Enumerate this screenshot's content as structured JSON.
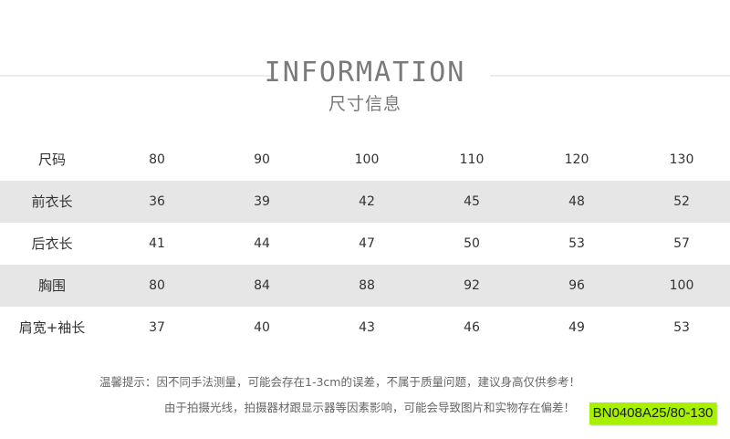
{
  "header": {
    "title_en": "INFORMATION",
    "title_cn": "尺寸信息"
  },
  "table": {
    "rows": [
      {
        "label": "尺码",
        "values": [
          "80",
          "90",
          "100",
          "110",
          "120",
          "130"
        ],
        "shaded": false
      },
      {
        "label": "前衣长",
        "values": [
          "36",
          "39",
          "42",
          "45",
          "48",
          "52"
        ],
        "shaded": true
      },
      {
        "label": "后衣长",
        "values": [
          "41",
          "44",
          "47",
          "50",
          "53",
          "57"
        ],
        "shaded": false
      },
      {
        "label": "胸围",
        "values": [
          "80",
          "84",
          "88",
          "92",
          "96",
          "100"
        ],
        "shaded": true
      },
      {
        "label": "肩宽+袖长",
        "values": [
          "37",
          "40",
          "43",
          "46",
          "49",
          "53"
        ],
        "shaded": false
      }
    ]
  },
  "notes": {
    "line1": "温馨提示：因不同手法测量，可能会存在1-3cm的误差，不属于质量问题，建议身高仅供参考！",
    "line2": "由于拍摄光线，拍摄器材跟显示器等因素影响，可能会导致图片和实物存在偏差！"
  },
  "badge": {
    "text": "BN0408A25/80-130",
    "color": "#a6f000"
  },
  "colors": {
    "row_shade": "#e6e6e6",
    "title": "#7a7a7a"
  }
}
